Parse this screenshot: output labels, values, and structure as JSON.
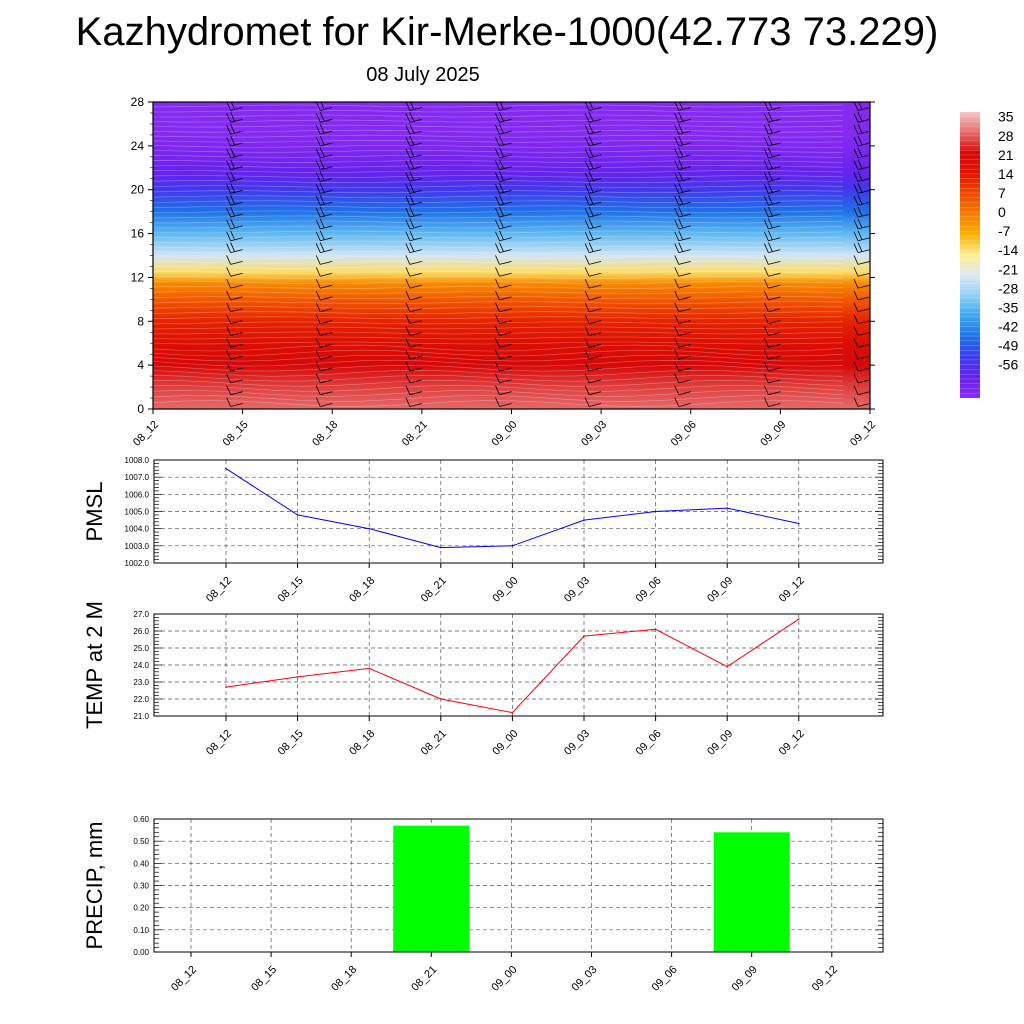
{
  "title": "Kazhydromet for Kir-Merke-1000(42.773 73.229)",
  "subtitle": "08 July 2025",
  "chart_data": [
    {
      "type": "heatmap",
      "name": "cross-section",
      "x_ticks": [
        "08_12",
        "08_15",
        "08_18",
        "08_21",
        "09_00",
        "09_03",
        "09_06",
        "09_09",
        "09_12"
      ],
      "y_ticks": [
        0,
        4,
        8,
        12,
        16,
        20,
        24,
        28
      ],
      "ylim": [
        0,
        28
      ],
      "z_profile": {
        "y": [
          0,
          2,
          4,
          6,
          8,
          10,
          11.5,
          12.5,
          14,
          16,
          18,
          20,
          21.5,
          23,
          25,
          28
        ],
        "value": [
          28,
          25,
          21,
          17,
          12,
          5,
          -2,
          -12,
          -22,
          -32,
          -42,
          -50,
          -56,
          -59,
          -62,
          -62
        ]
      },
      "colorbar": {
        "labels": [
          "35",
          "28",
          "21",
          "14",
          "7",
          "0",
          "-7",
          "-14",
          "-21",
          "-28",
          "-35",
          "-42",
          "-49",
          "-56"
        ],
        "colors": [
          "#f2c8c8",
          "#e56a6a",
          "#d60808",
          "#e01400",
          "#f04a00",
          "#f67d00",
          "#fab000",
          "#fdf090",
          "#dde8f5",
          "#8ed0f5",
          "#3aa6ee",
          "#1e72e8",
          "#3c3cec",
          "#6622ee",
          "#8a2bf0"
        ]
      },
      "wind_barbs": true
    },
    {
      "type": "line",
      "ylabel": "PMSL",
      "categories": [
        "08_12",
        "08_15",
        "08_18",
        "08_21",
        "09_00",
        "09_03",
        "09_06",
        "09_09",
        "09_12"
      ],
      "values": [
        1007.5,
        1004.8,
        1004.0,
        1002.9,
        1003.0,
        1004.5,
        1005.0,
        1005.2,
        1004.3
      ],
      "ylim": [
        1002.0,
        1008.0
      ],
      "y_ticks": [
        "1002.0",
        "1003.0",
        "1004.0",
        "1005.0",
        "1006.0",
        "1007.0",
        "1008.0"
      ],
      "color": "#0000ff",
      "grid": true
    },
    {
      "type": "line",
      "ylabel": "TEMP at 2 M",
      "categories": [
        "08_12",
        "08_15",
        "08_18",
        "08_21",
        "09_00",
        "09_03",
        "09_06",
        "09_09",
        "09_12"
      ],
      "values": [
        22.7,
        23.3,
        23.8,
        22.0,
        21.2,
        25.7,
        26.1,
        23.9,
        26.7
      ],
      "ylim": [
        21.0,
        27.0
      ],
      "y_ticks": [
        "21.0",
        "22.0",
        "23.0",
        "24.0",
        "25.0",
        "26.0",
        "27.0"
      ],
      "color": "#ff0000",
      "grid": true
    },
    {
      "type": "bar",
      "ylabel": "PRECIP, mm",
      "categories": [
        "08_12",
        "08_15",
        "08_18",
        "08_21",
        "09_00",
        "09_03",
        "09_06",
        "09_09",
        "09_12"
      ],
      "values": [
        0,
        0,
        0,
        0.57,
        0,
        0,
        0,
        0.54,
        0
      ],
      "ylim": [
        0,
        0.6
      ],
      "y_ticks": [
        "0.00",
        "0.10",
        "0.20",
        "0.30",
        "0.40",
        "0.50",
        "0.60"
      ],
      "color": "#00ff00",
      "grid": true
    }
  ]
}
